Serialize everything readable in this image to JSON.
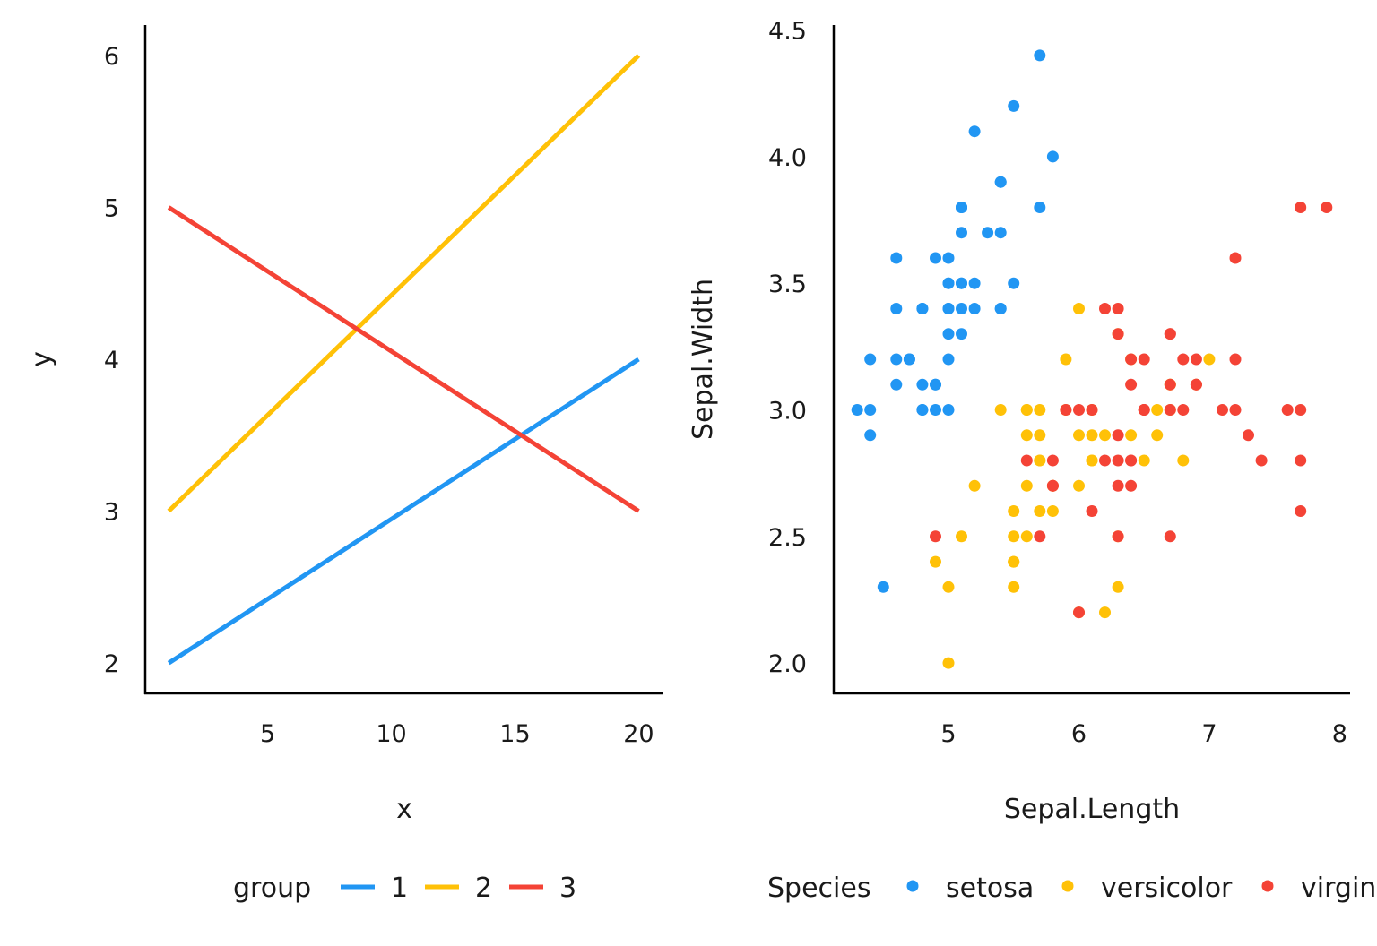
{
  "chart_data": [
    {
      "type": "line",
      "xlabel": "x",
      "ylabel": "y",
      "xlim": [
        0.05,
        21
      ],
      "ylim": [
        1.8,
        6.2
      ],
      "xticks": [
        5,
        10,
        15,
        20
      ],
      "yticks": [
        2,
        3,
        4,
        5,
        6
      ],
      "grid": false,
      "legend": {
        "title": "group",
        "position": "bottom"
      },
      "series": [
        {
          "name": "1",
          "color": "#2196F3",
          "x": [
            1,
            20
          ],
          "y": [
            2,
            4
          ]
        },
        {
          "name": "2",
          "color": "#FFC107",
          "x": [
            1,
            20
          ],
          "y": [
            3,
            6
          ]
        },
        {
          "name": "3",
          "color": "#F44336",
          "x": [
            1,
            20
          ],
          "y": [
            5,
            3
          ]
        }
      ]
    },
    {
      "type": "scatter",
      "xlabel": "Sepal.Length",
      "ylabel": "Sepal.Width",
      "xlim": [
        4.12,
        8.08
      ],
      "ylim": [
        1.88,
        4.52
      ],
      "xticks": [
        5,
        6,
        7,
        8
      ],
      "yticks": [
        "2.0",
        "2.5",
        "3.0",
        "3.5",
        "4.0",
        "4.5"
      ],
      "grid": false,
      "legend": {
        "title": "Species",
        "position": "bottom"
      },
      "series": [
        {
          "name": "setosa",
          "color": "#2196F3",
          "points": [
            [
              5.1,
              3.5
            ],
            [
              4.9,
              3.0
            ],
            [
              4.7,
              3.2
            ],
            [
              4.6,
              3.1
            ],
            [
              5.0,
              3.6
            ],
            [
              5.4,
              3.9
            ],
            [
              4.6,
              3.4
            ],
            [
              5.0,
              3.4
            ],
            [
              4.4,
              2.9
            ],
            [
              4.9,
              3.1
            ],
            [
              5.4,
              3.7
            ],
            [
              4.8,
              3.4
            ],
            [
              4.8,
              3.0
            ],
            [
              4.3,
              3.0
            ],
            [
              5.8,
              4.0
            ],
            [
              5.7,
              4.4
            ],
            [
              5.4,
              3.9
            ],
            [
              5.1,
              3.5
            ],
            [
              5.7,
              3.8
            ],
            [
              5.1,
              3.8
            ],
            [
              5.4,
              3.4
            ],
            [
              5.1,
              3.7
            ],
            [
              4.6,
              3.6
            ],
            [
              5.1,
              3.3
            ],
            [
              4.8,
              3.4
            ],
            [
              5.0,
              3.0
            ],
            [
              5.0,
              3.4
            ],
            [
              5.2,
              3.5
            ],
            [
              5.2,
              3.4
            ],
            [
              4.7,
              3.2
            ],
            [
              4.8,
              3.1
            ],
            [
              5.4,
              3.4
            ],
            [
              5.2,
              4.1
            ],
            [
              5.5,
              4.2
            ],
            [
              4.9,
              3.1
            ],
            [
              5.0,
              3.2
            ],
            [
              5.5,
              3.5
            ],
            [
              4.9,
              3.6
            ],
            [
              4.4,
              3.0
            ],
            [
              5.1,
              3.4
            ],
            [
              5.0,
              3.5
            ],
            [
              4.5,
              2.3
            ],
            [
              4.4,
              3.2
            ],
            [
              5.0,
              3.5
            ],
            [
              5.1,
              3.8
            ],
            [
              4.8,
              3.0
            ],
            [
              5.1,
              3.8
            ],
            [
              4.6,
              3.2
            ],
            [
              5.3,
              3.7
            ],
            [
              5.0,
              3.3
            ]
          ]
        },
        {
          "name": "versicolor",
          "color": "#FFC107",
          "points": [
            [
              7.0,
              3.2
            ],
            [
              6.4,
              3.2
            ],
            [
              6.9,
              3.1
            ],
            [
              5.5,
              2.3
            ],
            [
              6.5,
              2.8
            ],
            [
              5.7,
              2.8
            ],
            [
              6.3,
              3.3
            ],
            [
              4.9,
              2.4
            ],
            [
              6.6,
              2.9
            ],
            [
              5.2,
              2.7
            ],
            [
              5.0,
              2.0
            ],
            [
              5.9,
              3.0
            ],
            [
              6.0,
              2.2
            ],
            [
              6.1,
              2.9
            ],
            [
              5.6,
              2.9
            ],
            [
              6.7,
              3.1
            ],
            [
              5.6,
              3.0
            ],
            [
              5.8,
              2.7
            ],
            [
              6.2,
              2.2
            ],
            [
              5.6,
              2.5
            ],
            [
              5.9,
              3.2
            ],
            [
              6.1,
              2.8
            ],
            [
              6.3,
              2.5
            ],
            [
              6.1,
              2.8
            ],
            [
              6.4,
              2.9
            ],
            [
              6.6,
              3.0
            ],
            [
              6.8,
              2.8
            ],
            [
              6.7,
              3.0
            ],
            [
              6.0,
              2.9
            ],
            [
              5.7,
              2.6
            ],
            [
              5.5,
              2.4
            ],
            [
              5.5,
              2.4
            ],
            [
              5.8,
              2.7
            ],
            [
              6.0,
              2.7
            ],
            [
              5.4,
              3.0
            ],
            [
              6.0,
              3.4
            ],
            [
              6.7,
              3.1
            ],
            [
              6.3,
              2.3
            ],
            [
              5.6,
              3.0
            ],
            [
              5.5,
              2.5
            ],
            [
              5.5,
              2.6
            ],
            [
              6.1,
              3.0
            ],
            [
              5.8,
              2.6
            ],
            [
              5.0,
              2.3
            ],
            [
              5.6,
              2.7
            ],
            [
              5.7,
              3.0
            ],
            [
              5.7,
              2.9
            ],
            [
              6.2,
              2.9
            ],
            [
              5.1,
              2.5
            ],
            [
              5.7,
              2.8
            ]
          ]
        },
        {
          "name": "virginica",
          "color": "#F44336",
          "points": [
            [
              6.3,
              3.3
            ],
            [
              5.8,
              2.7
            ],
            [
              7.1,
              3.0
            ],
            [
              6.3,
              2.9
            ],
            [
              6.5,
              3.0
            ],
            [
              7.6,
              3.0
            ],
            [
              4.9,
              2.5
            ],
            [
              7.3,
              2.9
            ],
            [
              6.7,
              2.5
            ],
            [
              7.2,
              3.6
            ],
            [
              6.5,
              3.2
            ],
            [
              6.4,
              2.7
            ],
            [
              6.8,
              3.0
            ],
            [
              5.7,
              2.5
            ],
            [
              5.8,
              2.8
            ],
            [
              6.4,
              3.2
            ],
            [
              6.5,
              3.0
            ],
            [
              7.7,
              3.8
            ],
            [
              7.7,
              2.6
            ],
            [
              6.0,
              2.2
            ],
            [
              6.9,
              3.2
            ],
            [
              5.6,
              2.8
            ],
            [
              7.7,
              2.8
            ],
            [
              6.3,
              2.7
            ],
            [
              6.7,
              3.3
            ],
            [
              7.2,
              3.2
            ],
            [
              6.2,
              2.8
            ],
            [
              6.1,
              3.0
            ],
            [
              6.4,
              2.8
            ],
            [
              7.2,
              3.0
            ],
            [
              7.4,
              2.8
            ],
            [
              7.9,
              3.8
            ],
            [
              6.4,
              2.8
            ],
            [
              6.3,
              2.8
            ],
            [
              6.1,
              2.6
            ],
            [
              7.7,
              3.0
            ],
            [
              6.3,
              3.4
            ],
            [
              6.4,
              3.1
            ],
            [
              6.0,
              3.0
            ],
            [
              6.9,
              3.1
            ],
            [
              6.7,
              3.1
            ],
            [
              6.9,
              3.1
            ],
            [
              5.8,
              2.7
            ],
            [
              6.8,
              3.2
            ],
            [
              6.7,
              3.3
            ],
            [
              6.7,
              3.0
            ],
            [
              6.3,
              2.5
            ],
            [
              6.5,
              3.0
            ],
            [
              6.2,
              3.4
            ],
            [
              5.9,
              3.0
            ]
          ]
        }
      ]
    }
  ]
}
